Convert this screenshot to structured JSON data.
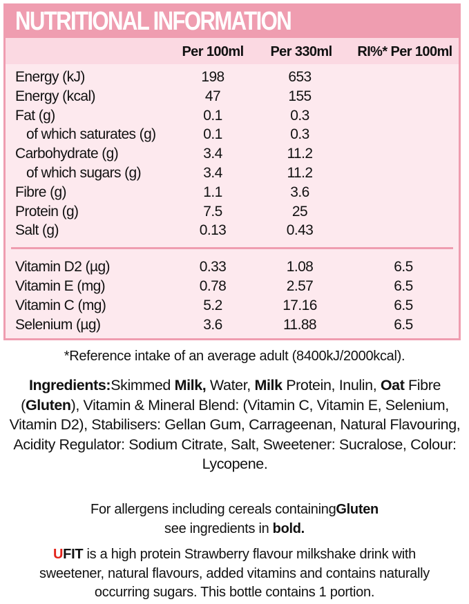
{
  "title": "NUTRITIONAL INFORMATION",
  "columns": [
    "Per 100ml",
    "Per 330ml",
    "RI%* Per 100ml"
  ],
  "nutrients": [
    {
      "label": "Energy (kJ)",
      "per100": "198",
      "per330": "653",
      "ri": "",
      "sub": false
    },
    {
      "label": "Energy (kcal)",
      "per100": "47",
      "per330": "155",
      "ri": "",
      "sub": false
    },
    {
      "label": "Fat (g)",
      "per100": "0.1",
      "per330": "0.3",
      "ri": "",
      "sub": false
    },
    {
      "label": "of which saturates (g)",
      "per100": "0.1",
      "per330": "0.3",
      "ri": "",
      "sub": true
    },
    {
      "label": "Carbohydrate (g)",
      "per100": "3.4",
      "per330": "11.2",
      "ri": "",
      "sub": false
    },
    {
      "label": "of which sugars (g)",
      "per100": "3.4",
      "per330": "11.2",
      "ri": "",
      "sub": true
    },
    {
      "label": "Fibre (g)",
      "per100": "1.1",
      "per330": "3.6",
      "ri": "",
      "sub": false
    },
    {
      "label": "Protein (g)",
      "per100": "7.5",
      "per330": "25",
      "ri": "",
      "sub": false
    },
    {
      "label": "Salt (g)",
      "per100": "0.13",
      "per330": "0.43",
      "ri": "",
      "sub": false
    }
  ],
  "vitamins": [
    {
      "label": "Vitamin D2 (µg)",
      "per100": "0.33",
      "per330": "1.08",
      "ri": "6.5"
    },
    {
      "label": "Vitamin E (mg)",
      "per100": "0.78",
      "per330": "2.57",
      "ri": "6.5"
    },
    {
      "label": "Vitamin C (mg)",
      "per100": "5.2",
      "per330": "17.16",
      "ri": "6.5"
    },
    {
      "label": "Selenium (µg)",
      "per100": "3.6",
      "per330": "11.88",
      "ri": "6.5"
    }
  ],
  "footnote": "*Reference intake of an average adult (8400kJ/2000kcal).",
  "ingredients": {
    "heading": "Ingredients:",
    "t1": "Skimmed ",
    "b1": "Milk,",
    "t2": " Water, ",
    "b2": "Milk",
    "t3": " Protein, Inulin, ",
    "b3": "Oat",
    "t4": " Fibre (",
    "b4": "Gluten",
    "t5": "), Vitamin & Mineral Blend: (Vitamin C, Vitamin E, Selenium, Vitamin D2), Stabilisers: Gellan Gum, Carrageenan, Natural Flavouring, Acidity Regulator: Sodium Citrate, Salt, Sweetener: Sucralose, Colour: Lycopene."
  },
  "allergens": {
    "t1": "For allergens including cereals containing",
    "b1": "Gluten",
    "t2": "see ingredients in ",
    "b2": "bold."
  },
  "description": {
    "u": "U",
    "fit": "FIT",
    "text": " is a high protein Strawberry flavour milkshake drink with sweetener, natural flavours, added vitamins and contains naturally occurring sugars. This bottle contains 1 portion."
  },
  "colors": {
    "pink": "#ef9db0",
    "table_bg": "#fde9ee",
    "header_bg": "#fbd9e2",
    "accent_red": "#e2231a"
  }
}
